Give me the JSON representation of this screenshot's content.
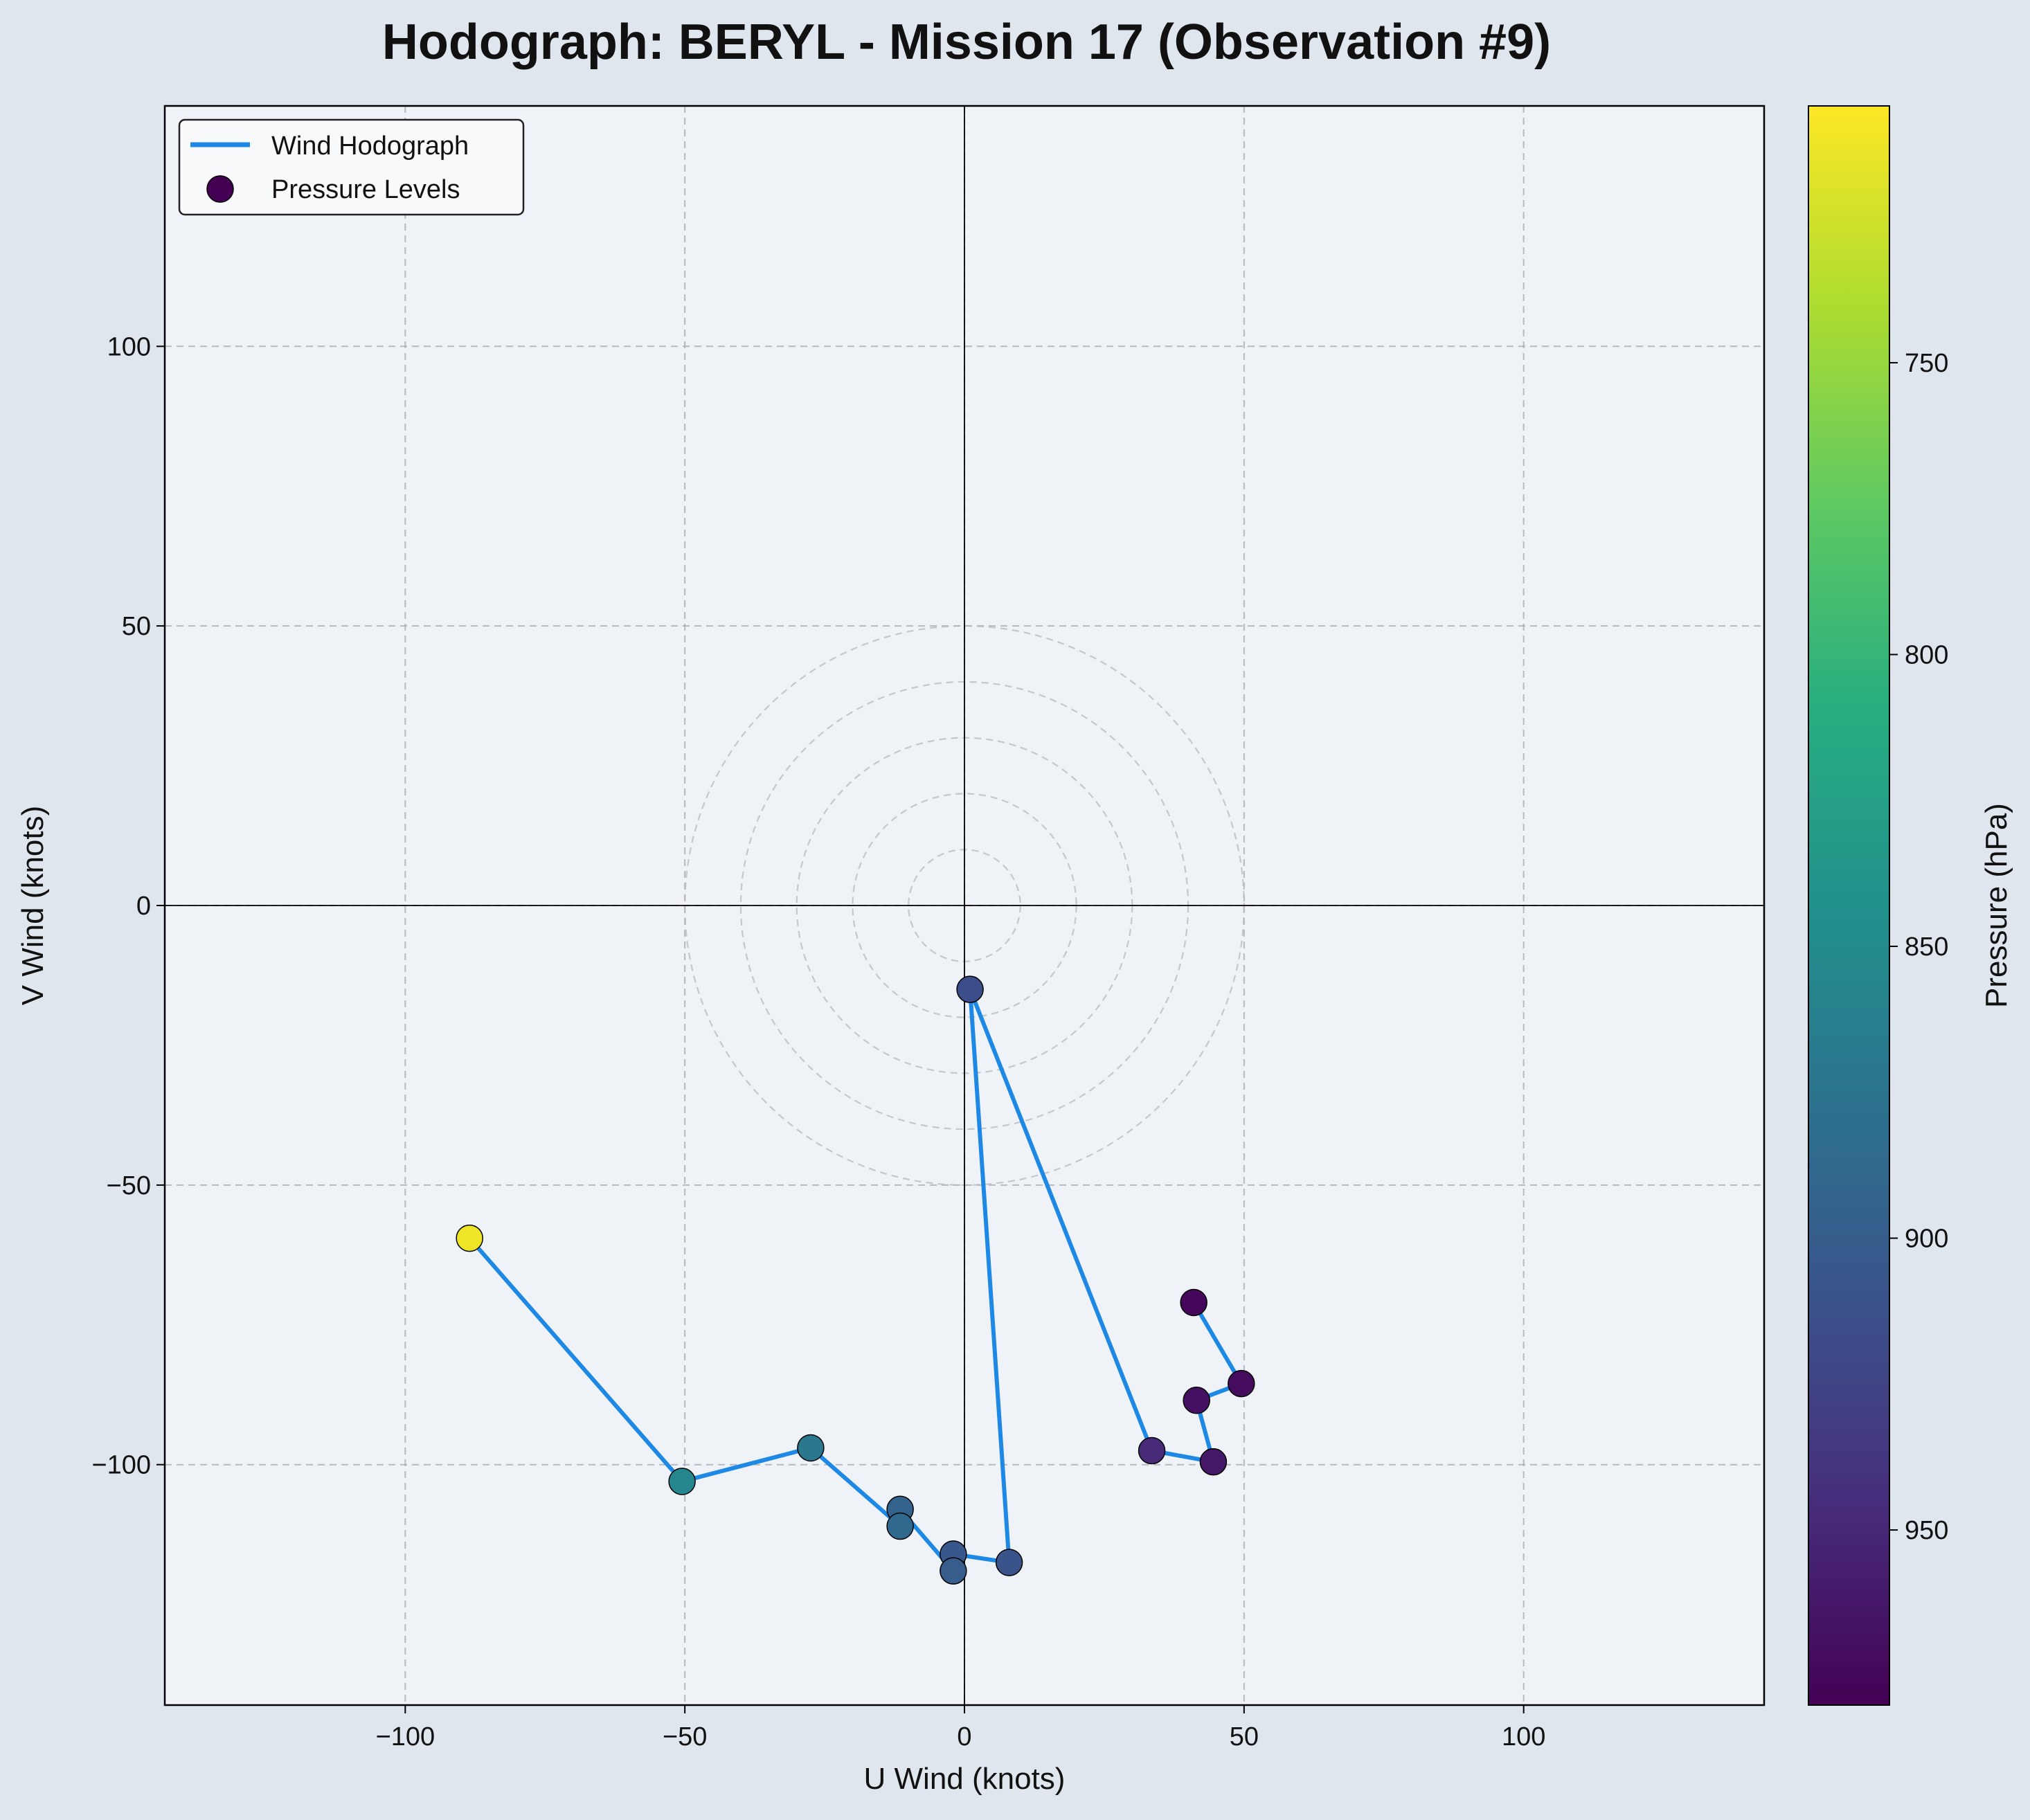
{
  "chart_data": {
    "type": "line",
    "title": "Hodograph: BERYL - Mission 17 (Observation #9)",
    "xlabel": "U Wind (knots)",
    "ylabel": "V Wind (knots)",
    "xlim": [
      -143,
      143
    ],
    "ylim": [
      -143,
      143
    ],
    "xticks": [
      -100,
      -50,
      0,
      50,
      100
    ],
    "yticks": [
      -100,
      -50,
      0,
      50,
      100
    ],
    "xtick_labels": [
      "−100",
      "−50",
      "0",
      "50",
      "100"
    ],
    "ytick_labels": [
      "−100",
      "−50",
      "0",
      "50",
      "100"
    ],
    "grid": true,
    "speed_rings": [
      10,
      20,
      30,
      40,
      50
    ],
    "legend": {
      "placement": "top-left",
      "entries": [
        {
          "label": "Wind Hodograph",
          "kind": "line",
          "color": "#1e88e5"
        },
        {
          "label": "Pressure Levels",
          "kind": "marker",
          "color": "#440154"
        }
      ]
    },
    "colorbar": {
      "label": "Pressure (hPa)",
      "range": [
        980,
        706
      ],
      "ticks": [
        750,
        800,
        850,
        900,
        950
      ],
      "colormap": "viridis",
      "reversed": true
    },
    "series": [
      {
        "name": "Wind Hodograph",
        "color": "#1e88e5",
        "points": [
          {
            "u": 41.0,
            "v": -71.0,
            "p": 975
          },
          {
            "u": 49.5,
            "v": -85.5,
            "p": 972
          },
          {
            "u": 41.5,
            "v": -88.5,
            "p": 968
          },
          {
            "u": 44.5,
            "v": -99.5,
            "p": 962
          },
          {
            "u": 33.5,
            "v": -97.5,
            "p": 948
          },
          {
            "u": 1.0,
            "v": -15.0,
            "p": 915
          },
          {
            "u": 8.0,
            "v": -117.5,
            "p": 910
          },
          {
            "u": -2.0,
            "v": -116.0,
            "p": 905
          },
          {
            "u": -2.0,
            "v": -119.0,
            "p": 900
          },
          {
            "u": -11.5,
            "v": -108.0,
            "p": 893
          },
          {
            "u": -11.5,
            "v": -111.0,
            "p": 888
          },
          {
            "u": -27.5,
            "v": -97.0,
            "p": 872
          },
          {
            "u": -50.5,
            "v": -103.0,
            "p": 855
          },
          {
            "u": -88.5,
            "v": -59.5,
            "p": 712
          }
        ]
      }
    ]
  }
}
